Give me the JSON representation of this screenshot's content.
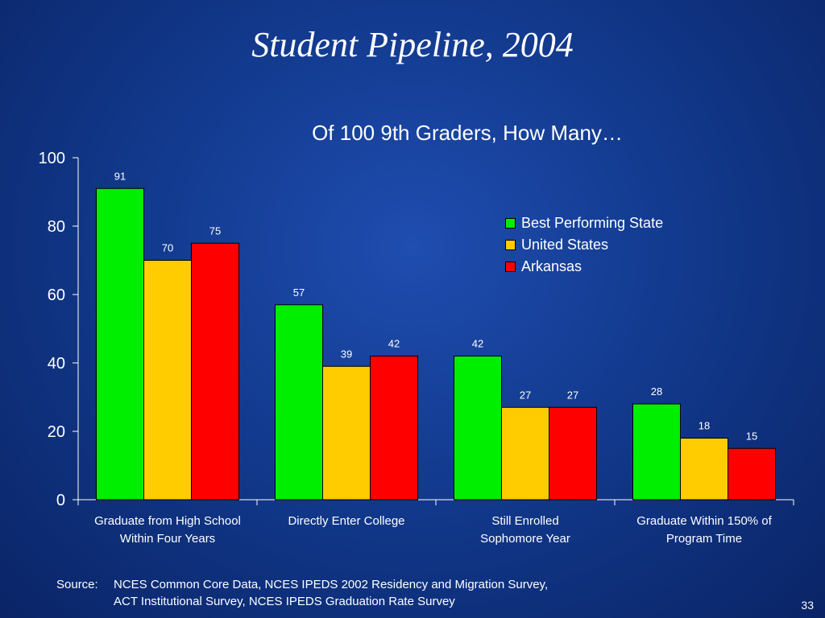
{
  "slide": {
    "title": "Student Pipeline, 2004",
    "number": "33"
  },
  "source": {
    "label": "Source:",
    "lines": [
      "NCES Common Core Data, NCES IPEDS 2002 Residency and Migration Survey,",
      "ACT Institutional Survey, NCES IPEDS Graduation Rate Survey"
    ]
  },
  "chart_data": {
    "type": "bar",
    "title": "Of 100 9th Graders, How Many…",
    "xlabel": "",
    "ylabel": "",
    "ylim": [
      0,
      100
    ],
    "yticks": [
      0,
      20,
      40,
      60,
      80,
      100
    ],
    "grid": false,
    "legend_position": "right",
    "categories": [
      [
        "Graduate from High School",
        "Within Four Years"
      ],
      [
        "Directly Enter College"
      ],
      [
        "Still Enrolled",
        "Sophomore Year"
      ],
      [
        "Graduate Within 150% of",
        "Program Time"
      ]
    ],
    "series": [
      {
        "name": "Best Performing State",
        "color": "#00ee00",
        "values": [
          91,
          57,
          42,
          28
        ]
      },
      {
        "name": "United States",
        "color": "#ffcc00",
        "values": [
          70,
          39,
          27,
          18
        ]
      },
      {
        "name": "Arkansas",
        "color": "#ff0000",
        "values": [
          75,
          42,
          27,
          15
        ]
      }
    ]
  }
}
